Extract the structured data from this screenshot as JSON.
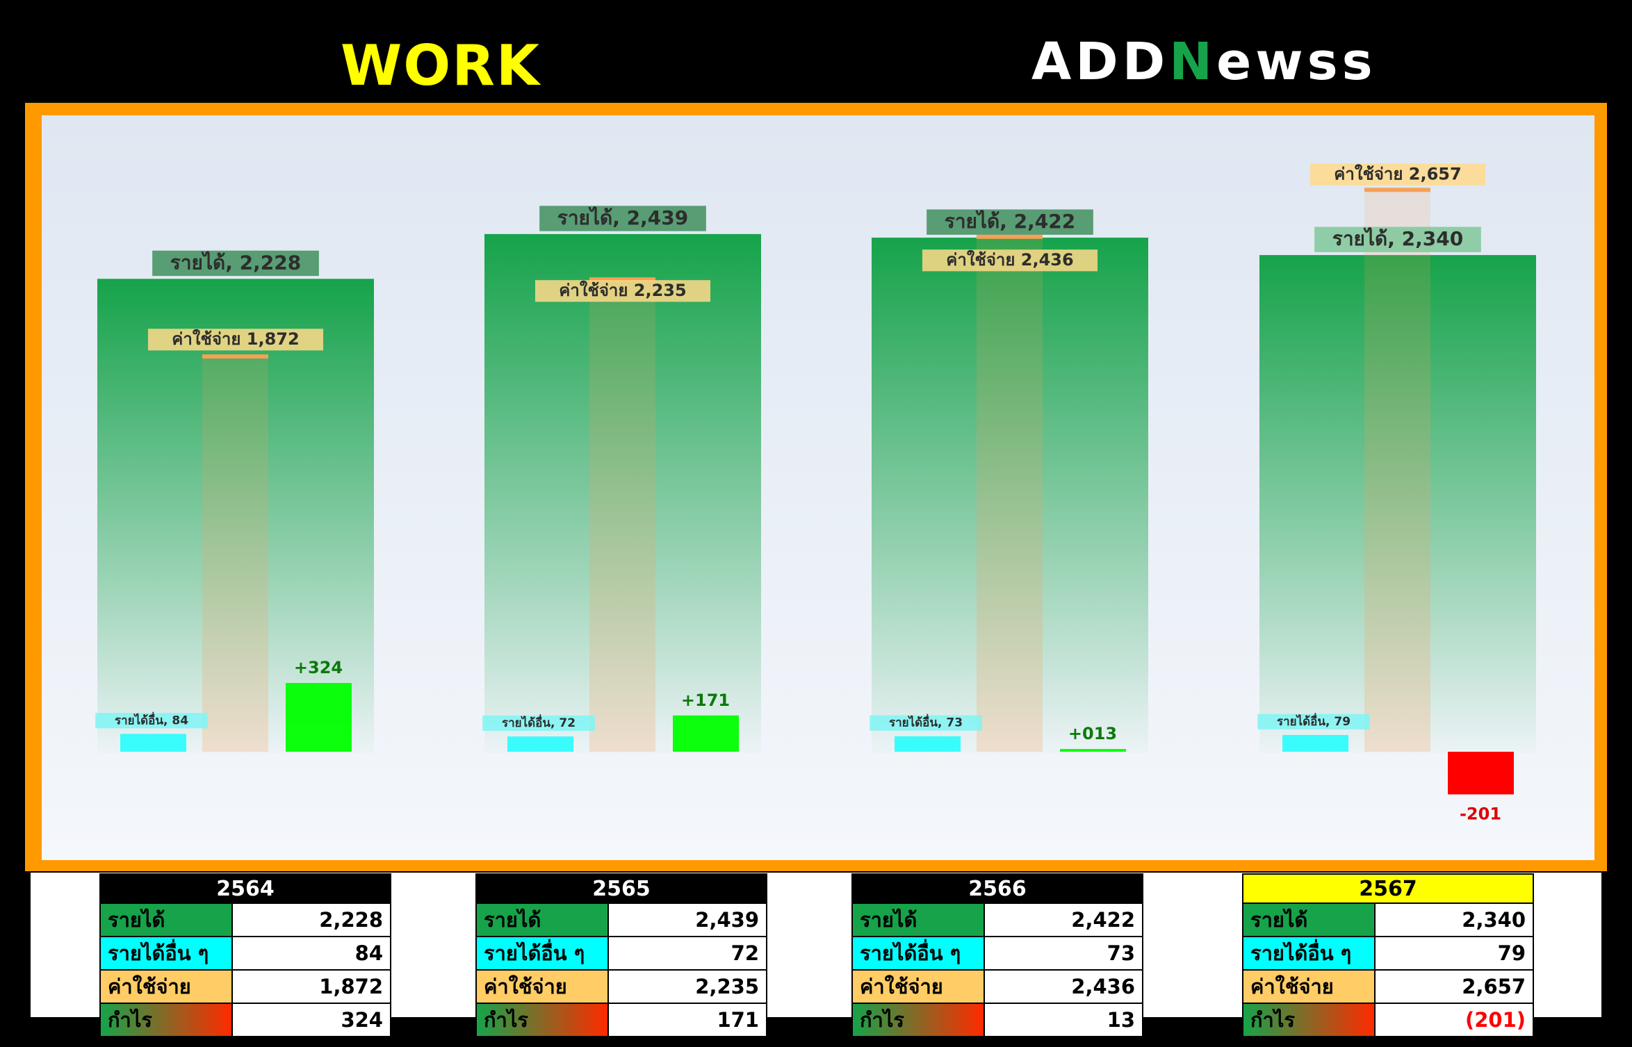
{
  "header": {
    "title": "WORK",
    "logo_pre": "ADD",
    "logo_n": "N",
    "logo_post": "ewss"
  },
  "colors": {
    "revenue": "#16a34a",
    "other_income": "#00ffff",
    "expense": "#f7a055",
    "profit_pos": "#00ff00",
    "profit_neg": "#ff0000",
    "frame": "#ff9900",
    "highlight": "#ffff00"
  },
  "chart_data": {
    "type": "bar",
    "categories": [
      "2564",
      "2565",
      "2566",
      "2567"
    ],
    "series": [
      {
        "name": "รายได้",
        "values": [
          2228,
          2439,
          2422,
          2340
        ]
      },
      {
        "name": "รายได้อื่น",
        "values": [
          84,
          72,
          73,
          79
        ]
      },
      {
        "name": "ค่าใช้จ่าย",
        "values": [
          1872,
          2235,
          2436,
          2657
        ]
      },
      {
        "name": "กำไร",
        "values": [
          324,
          171,
          13,
          -201
        ]
      }
    ],
    "data_labels": {
      "revenue": [
        "รายได้, 2,228",
        "รายได้, 2,439",
        "รายได้, 2,422",
        "รายได้, 2,340"
      ],
      "other_income": [
        "รายได้อื่น, 84",
        "รายได้อื่น, 72",
        "รายได้อื่น, 73",
        "รายได้อื่น, 79"
      ],
      "expense": [
        "ค่าใช้จ่าย 1,872",
        "ค่าใช้จ่าย 2,235",
        "ค่าใช้จ่าย 2,436",
        "ค่าใช้จ่าย 2,657"
      ],
      "profit": [
        "+324",
        "+171",
        "+013",
        "-201"
      ]
    },
    "title": "",
    "xlabel": "",
    "ylabel": "",
    "ylim": [
      -300,
      2900
    ],
    "grid": false
  },
  "tables": [
    {
      "year": "2564",
      "highlight": false,
      "rows": [
        {
          "label": "รายได้",
          "value": "2,228"
        },
        {
          "label": "รายได้อื่น ๆ",
          "value": "84"
        },
        {
          "label": "ค่าใช้จ่าย",
          "value": "1,872"
        },
        {
          "label": "กำไร",
          "value": "324"
        }
      ]
    },
    {
      "year": "2565",
      "highlight": false,
      "rows": [
        {
          "label": "รายได้",
          "value": "2,439"
        },
        {
          "label": "รายได้อื่น ๆ",
          "value": "72"
        },
        {
          "label": "ค่าใช้จ่าย",
          "value": "2,235"
        },
        {
          "label": "กำไร",
          "value": "171"
        }
      ]
    },
    {
      "year": "2566",
      "highlight": false,
      "rows": [
        {
          "label": "รายได้",
          "value": "2,422"
        },
        {
          "label": "รายได้อื่น ๆ",
          "value": "73"
        },
        {
          "label": "ค่าใช้จ่าย",
          "value": "2,436"
        },
        {
          "label": "กำไร",
          "value": "13"
        }
      ]
    },
    {
      "year": "2567",
      "highlight": true,
      "rows": [
        {
          "label": "รายได้",
          "value": "2,340"
        },
        {
          "label": "รายได้อื่น ๆ",
          "value": "79"
        },
        {
          "label": "ค่าใช้จ่าย",
          "value": "2,657"
        },
        {
          "label": "กำไร",
          "value": "(201)"
        }
      ]
    }
  ]
}
